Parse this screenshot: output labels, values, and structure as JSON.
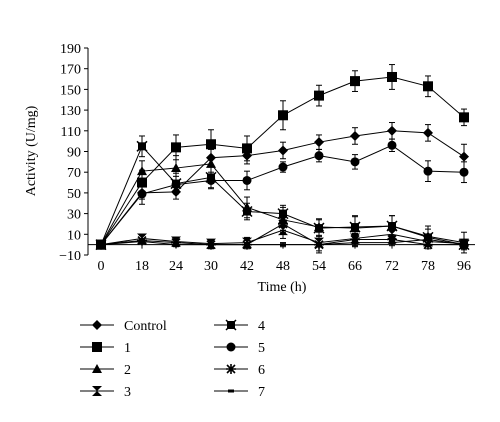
{
  "chart_data": {
    "type": "line",
    "xlabel": "Time (h)",
    "ylabel": "Activity (U/mg)",
    "ylim": [
      -10,
      190
    ],
    "yticks": [
      -10,
      10,
      30,
      50,
      70,
      90,
      110,
      130,
      150,
      170,
      190
    ],
    "categories": [
      "0",
      "18",
      "24",
      "30",
      "42",
      "48",
      "54",
      "66",
      "72",
      "78",
      "96"
    ],
    "grid": false,
    "legend": "bottom",
    "series": [
      {
        "name": "Control",
        "marker": "diamond",
        "values": [
          0,
          50,
          51,
          84,
          86,
          91,
          99,
          105,
          110,
          108,
          85
        ],
        "errors": [
          0,
          6,
          7,
          9,
          8,
          8,
          7,
          8,
          8,
          8,
          12
        ]
      },
      {
        "name": "1",
        "marker": "square",
        "values": [
          0,
          60,
          94,
          97,
          93,
          125,
          144,
          158,
          162,
          153,
          123
        ],
        "errors": [
          0,
          12,
          12,
          14,
          12,
          14,
          10,
          10,
          12,
          10,
          8
        ]
      },
      {
        "name": "2",
        "marker": "triangle",
        "values": [
          0,
          71,
          74,
          78,
          36,
          24,
          17,
          16,
          18,
          8,
          2
        ],
        "errors": [
          0,
          10,
          12,
          14,
          10,
          12,
          8,
          12,
          10,
          10,
          10
        ]
      },
      {
        "name": "3",
        "marker": "hourglass",
        "values": [
          0,
          6,
          3,
          1,
          2,
          14,
          2,
          6,
          10,
          3,
          1
        ],
        "errors": [
          0,
          3,
          4,
          4,
          5,
          8,
          10,
          8,
          6,
          5,
          4
        ]
      },
      {
        "name": "4",
        "marker": "square-x",
        "values": [
          0,
          95,
          59,
          65,
          32,
          30,
          16,
          17,
          18,
          7,
          0
        ],
        "errors": [
          0,
          10,
          10,
          10,
          8,
          8,
          8,
          10,
          10,
          8,
          5
        ]
      },
      {
        "name": "5",
        "marker": "circle",
        "values": [
          0,
          49,
          58,
          62,
          62,
          75,
          86,
          80,
          96,
          71,
          70
        ],
        "errors": [
          0,
          10,
          8,
          8,
          9,
          5,
          6,
          7,
          6,
          10,
          10
        ]
      },
      {
        "name": "6",
        "marker": "asterisk",
        "values": [
          0,
          4,
          2,
          0,
          0,
          20,
          0,
          5,
          5,
          0,
          0
        ],
        "errors": [
          0,
          2,
          3,
          4,
          4,
          6,
          6,
          6,
          4,
          4,
          4
        ]
      },
      {
        "name": "7",
        "marker": "dash",
        "values": [
          0,
          3,
          0,
          0,
          0,
          0,
          0,
          2,
          2,
          5,
          0
        ],
        "errors": [
          0,
          2,
          2,
          2,
          2,
          2,
          2,
          3,
          3,
          3,
          2
        ]
      }
    ]
  }
}
